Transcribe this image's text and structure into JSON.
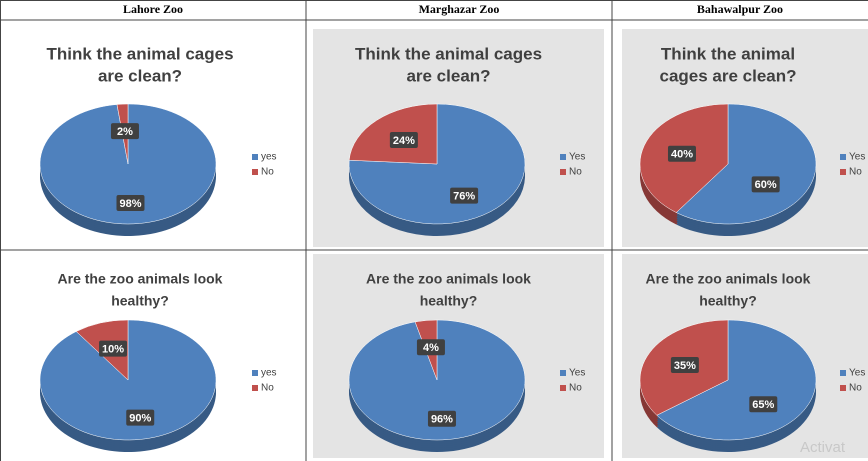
{
  "table": {
    "headers": [
      "Lahore Zoo",
      "Marghazar Zoo",
      "Bahawalpur Zoo"
    ]
  },
  "chart_data": [
    {
      "type": "pie",
      "title": [
        "Think the animal cages",
        "are clean?"
      ],
      "categories": [
        "yes",
        "No"
      ],
      "values": [
        98,
        2
      ],
      "value_labels": [
        "98%",
        "2%"
      ],
      "colors": [
        "#4f81bd",
        "#c0504d"
      ]
    },
    {
      "type": "pie",
      "title": [
        "Think the animal cages",
        "are clean?"
      ],
      "categories": [
        "Yes",
        "No"
      ],
      "values": [
        76,
        24
      ],
      "value_labels": [
        "76%",
        "24%"
      ],
      "colors": [
        "#4f81bd",
        "#c0504d"
      ]
    },
    {
      "type": "pie",
      "title": [
        "Think the animal",
        "cages are clean?"
      ],
      "categories": [
        "Yes",
        "No"
      ],
      "values": [
        60,
        40
      ],
      "value_labels": [
        "60%",
        "40%"
      ],
      "colors": [
        "#4f81bd",
        "#c0504d"
      ]
    },
    {
      "type": "pie",
      "title": [
        "Are the  zoo animals look",
        "healthy?"
      ],
      "categories": [
        "yes",
        "No"
      ],
      "values": [
        90,
        10
      ],
      "value_labels": [
        "90%",
        "10%"
      ],
      "colors": [
        "#4f81bd",
        "#c0504d"
      ]
    },
    {
      "type": "pie",
      "title": [
        "Are the zoo animals look",
        "healthy?"
      ],
      "categories": [
        "Yes",
        "No"
      ],
      "values": [
        96,
        4
      ],
      "value_labels": [
        "96%",
        "4%"
      ],
      "colors": [
        "#4f81bd",
        "#c0504d"
      ]
    },
    {
      "type": "pie",
      "title": [
        "Are the zoo animals look",
        "healthy?"
      ],
      "categories": [
        "Yes",
        "No"
      ],
      "values": [
        65,
        35
      ],
      "value_labels": [
        "65%",
        "35%"
      ],
      "colors": [
        "#4f81bd",
        "#c0504d"
      ]
    }
  ],
  "watermark": "Activat"
}
